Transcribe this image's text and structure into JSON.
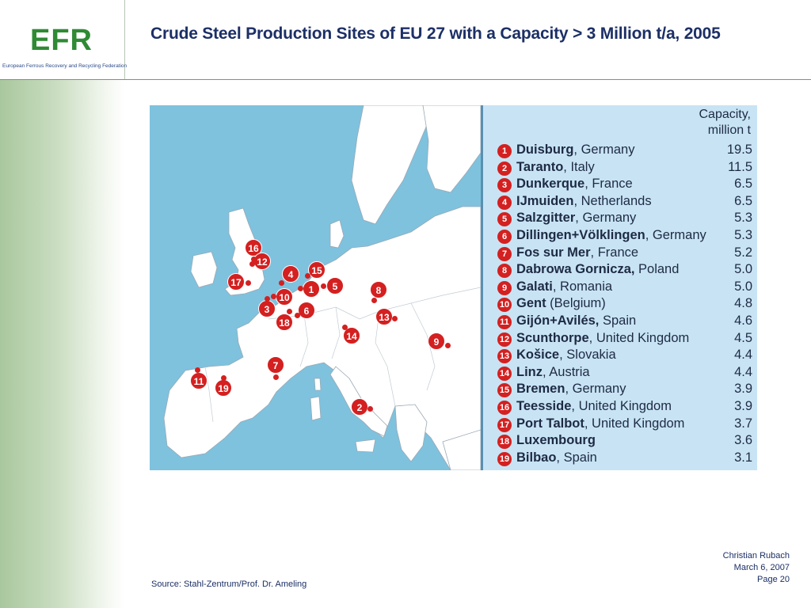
{
  "logo": {
    "mark": "EFR",
    "subtitle": "European Ferrous Recovery and Recycling Federation"
  },
  "slide": {
    "title": "Crude Steel Production Sites of EU 27 with a Capacity > 3 Million t/a, 2005"
  },
  "table": {
    "header_line1": "Capacity,",
    "header_line2": "million t",
    "rows": [
      {
        "num": "1",
        "city": "Duisburg",
        "rest": ", Germany",
        "value": "19.5"
      },
      {
        "num": "2",
        "city": "Taranto",
        "rest": ", Italy",
        "value": "11.5"
      },
      {
        "num": "3",
        "city": "Dunkerque",
        "rest": ", France",
        "value": "6.5"
      },
      {
        "num": "4",
        "city": "IJmuiden",
        "rest": ", Netherlands",
        "value": "6.5"
      },
      {
        "num": "5",
        "city": "Salzgitter",
        "rest": ", Germany",
        "value": "5.3"
      },
      {
        "num": "6",
        "city": "Dillingen+Völklingen",
        "rest": ", Germany",
        "value": "5.3"
      },
      {
        "num": "7",
        "city": "Fos sur Mer",
        "rest": ", France",
        "value": "5.2"
      },
      {
        "num": "8",
        "city": "Dabrowa Gornicza,",
        "rest": " Poland",
        "value": "5.0"
      },
      {
        "num": "9",
        "city": "Galati",
        "rest": ", Romania",
        "value": "5.0"
      },
      {
        "num": "10",
        "city": "Gent",
        "rest": " (Belgium)",
        "value": "4.8"
      },
      {
        "num": "11",
        "city": "Gijón+Avilés,",
        "rest": " Spain",
        "value": "4.6"
      },
      {
        "num": "12",
        "city": "Scunthorpe",
        "rest": ", United Kingdom",
        "value": "4.5"
      },
      {
        "num": "13",
        "city": "Košice",
        "rest": ", Slovakia",
        "value": "4.4"
      },
      {
        "num": "14",
        "city": "Linz",
        "rest": ", Austria",
        "value": "4.4"
      },
      {
        "num": "15",
        "city": "Bremen",
        "rest": ", Germany",
        "value": "3.9"
      },
      {
        "num": "16",
        "city": "Teesside",
        "rest": ", United Kingdom",
        "value": "3.9"
      },
      {
        "num": "17",
        "city": "Port Talbot",
        "rest": ", United Kingdom",
        "value": "3.7"
      },
      {
        "num": "18",
        "city": "Luxembourg",
        "rest": "",
        "value": "3.6"
      },
      {
        "num": "19",
        "city": "Bilbao",
        "rest": ", Spain",
        "value": "3.1"
      }
    ]
  },
  "map_pins": {
    "p1": "1",
    "p2": "2",
    "p3": "3",
    "p4": "4",
    "p5": "5",
    "p6": "6",
    "p7": "7",
    "p8": "8",
    "p9": "9",
    "p10": "10",
    "p11": "11",
    "p12": "12",
    "p13": "13",
    "p14": "14",
    "p15": "15",
    "p16": "16",
    "p17": "17",
    "p18": "18",
    "p19": "19"
  },
  "source": "Source: Stahl-Zentrum/Prof. Dr. Ameling",
  "footer": {
    "author": "Christian Rubach",
    "date": "March 6, 2007",
    "page": "Page 20"
  },
  "colors": {
    "title": "#1c2f66",
    "pin": "#d42020",
    "sea": "#7ec2de",
    "land": "#ffffff",
    "panel": "#c8e4f4"
  }
}
